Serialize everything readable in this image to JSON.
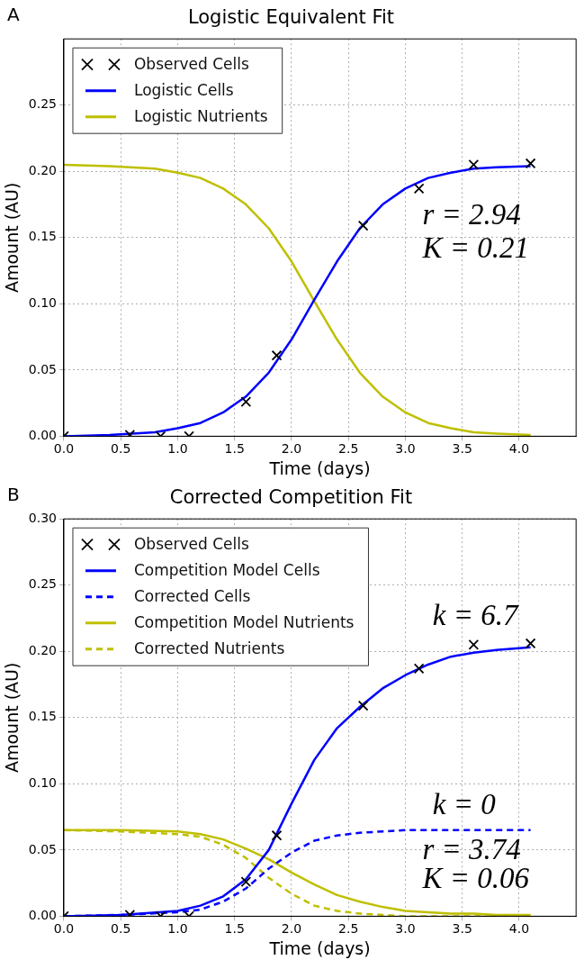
{
  "chart_data": [
    {
      "type": "line",
      "title": "Logistic Equivalent Fit",
      "xlabel": "Time (days)",
      "ylabel": "Amount (AU)",
      "xlim": [
        0,
        4.5
      ],
      "xticks": [
        {
          "value": 0,
          "label": "0.0"
        },
        {
          "value": 0.5,
          "label": "0.5"
        },
        {
          "value": 1,
          "label": "1.0"
        },
        {
          "value": 1.5,
          "label": "1.5"
        },
        {
          "value": 2,
          "label": "2.0"
        },
        {
          "value": 2.5,
          "label": "2.5"
        },
        {
          "value": 3,
          "label": "3.0"
        },
        {
          "value": 3.5,
          "label": "3.5"
        },
        {
          "value": 4,
          "label": "4.0"
        }
      ],
      "ylim": [
        0,
        0.3
      ],
      "yticks": [
        {
          "value": 0,
          "label": "0.00"
        },
        {
          "value": 0.05,
          "label": "0.05"
        },
        {
          "value": 0.1,
          "label": "0.10"
        },
        {
          "value": 0.15,
          "label": "0.15"
        },
        {
          "value": 0.2,
          "label": "0.20"
        },
        {
          "value": 0.25,
          "label": "0.25"
        }
      ],
      "grid": true,
      "legend": "top left",
      "annotations": [
        "A",
        "r = 2.94",
        "K = 0.21"
      ],
      "series": [
        {
          "name": "Observed Cells",
          "type": "scatter",
          "marker": "cross",
          "color": "#000000",
          "x": [
            0,
            0.58,
            0.85,
            1.1,
            1.6,
            1.87,
            2.63,
            3.12,
            3.6,
            4.1
          ],
          "values": [
            0.0,
            0.001,
            0.0,
            0.0,
            0.026,
            0.061,
            0.159,
            0.187,
            0.205,
            0.206
          ]
        },
        {
          "name": "Logistic Cells",
          "type": "line",
          "color": "#0000ff",
          "x": [
            0,
            0.4,
            0.8,
            1.0,
            1.2,
            1.4,
            1.6,
            1.8,
            2.0,
            2.2,
            2.4,
            2.6,
            2.8,
            3.0,
            3.2,
            3.4,
            3.6,
            3.8,
            4.1
          ],
          "values": [
            0.0,
            0.001,
            0.003,
            0.006,
            0.01,
            0.018,
            0.03,
            0.048,
            0.073,
            0.103,
            0.132,
            0.157,
            0.175,
            0.187,
            0.195,
            0.199,
            0.202,
            0.203,
            0.204
          ]
        },
        {
          "name": "Logistic Nutrients",
          "type": "line",
          "color": "#bfbf00",
          "x": [
            0,
            0.4,
            0.8,
            1.0,
            1.2,
            1.4,
            1.6,
            1.8,
            2.0,
            2.2,
            2.4,
            2.6,
            2.8,
            3.0,
            3.2,
            3.4,
            3.6,
            3.8,
            4.1
          ],
          "values": [
            0.205,
            0.204,
            0.202,
            0.199,
            0.195,
            0.187,
            0.175,
            0.157,
            0.132,
            0.102,
            0.073,
            0.048,
            0.03,
            0.018,
            0.01,
            0.006,
            0.003,
            0.002,
            0.001
          ]
        }
      ]
    },
    {
      "type": "line",
      "title": "Corrected Competition Fit",
      "xlabel": "Time (days)",
      "ylabel": "Amount (AU)",
      "xlim": [
        0,
        4.5
      ],
      "xticks": [
        {
          "value": 0,
          "label": "0.0"
        },
        {
          "value": 0.5,
          "label": "0.5"
        },
        {
          "value": 1,
          "label": "1.0"
        },
        {
          "value": 1.5,
          "label": "1.5"
        },
        {
          "value": 2,
          "label": "2.0"
        },
        {
          "value": 2.5,
          "label": "2.5"
        },
        {
          "value": 3,
          "label": "3.0"
        },
        {
          "value": 3.5,
          "label": "3.5"
        },
        {
          "value": 4,
          "label": "4.0"
        }
      ],
      "ylim": [
        0,
        0.3
      ],
      "yticks": [
        {
          "value": 0,
          "label": "0.00"
        },
        {
          "value": 0.05,
          "label": "0.05"
        },
        {
          "value": 0.1,
          "label": "0.10"
        },
        {
          "value": 0.15,
          "label": "0.15"
        },
        {
          "value": 0.2,
          "label": "0.20"
        },
        {
          "value": 0.25,
          "label": "0.25"
        },
        {
          "value": 0.3,
          "label": "0.30"
        }
      ],
      "grid": true,
      "legend": "top left",
      "annotations": [
        "B",
        "k = 6.7",
        "k = 0",
        "r = 3.74",
        "K = 0.06"
      ],
      "series": [
        {
          "name": "Observed Cells",
          "type": "scatter",
          "marker": "cross",
          "color": "#000000",
          "x": [
            0,
            0.58,
            0.85,
            1.1,
            1.6,
            1.87,
            2.63,
            3.12,
            3.6,
            4.1
          ],
          "values": [
            0.0,
            0.001,
            0.0,
            0.0,
            0.026,
            0.061,
            0.159,
            0.187,
            0.205,
            0.206
          ]
        },
        {
          "name": "Competition Model Cells",
          "type": "line",
          "color": "#0000ff",
          "x": [
            0,
            0.5,
            1.0,
            1.2,
            1.4,
            1.6,
            1.8,
            2.0,
            2.2,
            2.4,
            2.6,
            2.8,
            3.0,
            3.2,
            3.4,
            3.6,
            3.8,
            4.1
          ],
          "values": [
            0.0,
            0.001,
            0.004,
            0.008,
            0.015,
            0.028,
            0.05,
            0.085,
            0.118,
            0.142,
            0.158,
            0.172,
            0.182,
            0.19,
            0.196,
            0.199,
            0.201,
            0.203
          ]
        },
        {
          "name": "Corrected Cells",
          "type": "line",
          "line_style": "dashed",
          "color": "#0000ff",
          "x": [
            0,
            0.5,
            1.0,
            1.2,
            1.4,
            1.6,
            1.8,
            2.0,
            2.2,
            2.4,
            2.6,
            2.8,
            3.0,
            3.2,
            3.4,
            3.6,
            3.8,
            4.1
          ],
          "values": [
            0.0,
            0.001,
            0.003,
            0.005,
            0.011,
            0.021,
            0.036,
            0.048,
            0.057,
            0.061,
            0.063,
            0.064,
            0.065,
            0.065,
            0.065,
            0.065,
            0.065,
            0.065
          ]
        },
        {
          "name": "Competition Model Nutrients",
          "type": "line",
          "color": "#bfbf00",
          "x": [
            0,
            0.5,
            1.0,
            1.2,
            1.4,
            1.6,
            1.8,
            2.0,
            2.2,
            2.4,
            2.6,
            2.8,
            3.0,
            3.2,
            3.4,
            3.6,
            3.8,
            4.1
          ],
          "values": [
            0.065,
            0.065,
            0.064,
            0.062,
            0.058,
            0.051,
            0.043,
            0.033,
            0.024,
            0.016,
            0.011,
            0.007,
            0.004,
            0.003,
            0.002,
            0.002,
            0.001,
            0.001
          ]
        },
        {
          "name": "Corrected Nutrients",
          "type": "line",
          "line_style": "dashed",
          "color": "#bfbf00",
          "x": [
            0,
            0.5,
            1.0,
            1.2,
            1.4,
            1.6,
            1.8,
            2.0,
            2.2,
            2.4,
            2.6,
            2.8,
            3.0,
            3.2,
            3.4,
            3.6,
            3.8,
            4.1
          ],
          "values": [
            0.065,
            0.064,
            0.062,
            0.06,
            0.054,
            0.044,
            0.029,
            0.017,
            0.008,
            0.004,
            0.002,
            0.001,
            0.0,
            0.0,
            0.0,
            0.0,
            0.0,
            0.0
          ]
        }
      ]
    }
  ]
}
